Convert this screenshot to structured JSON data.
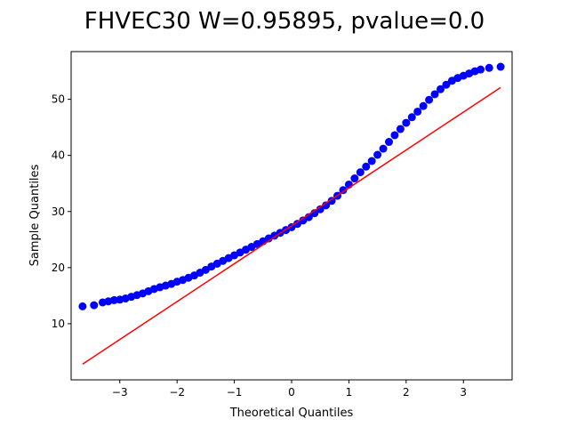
{
  "chart_data": {
    "type": "scatter",
    "title": "FHVEC30 W=0.95895, pvalue=0.0",
    "xlabel": "Theoretical Quantiles",
    "ylabel": "Sample Quantiles",
    "xlim": [
      -3.85,
      3.85
    ],
    "ylim": [
      0.0,
      58.5
    ],
    "xticks": [
      -3,
      -2,
      -1,
      0,
      1,
      2,
      3
    ],
    "xtick_labels": [
      "−3",
      "−2",
      "−1",
      "0",
      "1",
      "2",
      "3"
    ],
    "yticks": [
      10,
      20,
      30,
      40,
      50
    ],
    "ytick_labels": [
      "10",
      "20",
      "30",
      "40",
      "50"
    ],
    "grid": false,
    "series": [
      {
        "kind": "scatter",
        "color": "#0000ff",
        "x": [
          -3.65,
          -3.45,
          -3.3,
          -3.2,
          -3.1,
          -3.0,
          -2.9,
          -2.8,
          -2.7,
          -2.6,
          -2.5,
          -2.4,
          -2.3,
          -2.2,
          -2.1,
          -2.0,
          -1.9,
          -1.8,
          -1.7,
          -1.6,
          -1.5,
          -1.4,
          -1.3,
          -1.2,
          -1.1,
          -1.0,
          -0.9,
          -0.8,
          -0.7,
          -0.6,
          -0.5,
          -0.4,
          -0.3,
          -0.2,
          -0.1,
          0.0,
          0.1,
          0.2,
          0.3,
          0.4,
          0.5,
          0.6,
          0.7,
          0.8,
          0.9,
          1.0,
          1.1,
          1.2,
          1.3,
          1.4,
          1.5,
          1.6,
          1.7,
          1.8,
          1.9,
          2.0,
          2.1,
          2.2,
          2.3,
          2.4,
          2.5,
          2.6,
          2.7,
          2.8,
          2.9,
          3.0,
          3.1,
          3.2,
          3.3,
          3.45,
          3.65
        ],
        "y": [
          13.1,
          13.3,
          13.8,
          14.0,
          14.2,
          14.3,
          14.5,
          14.8,
          15.1,
          15.4,
          15.8,
          16.2,
          16.5,
          16.8,
          17.1,
          17.5,
          17.8,
          18.2,
          18.6,
          19.1,
          19.6,
          20.2,
          20.7,
          21.2,
          21.7,
          22.2,
          22.7,
          23.2,
          23.7,
          24.2,
          24.7,
          25.2,
          25.7,
          26.2,
          26.7,
          27.2,
          27.8,
          28.4,
          29.0,
          29.7,
          30.4,
          31.1,
          31.9,
          32.8,
          33.8,
          34.8,
          35.9,
          37.0,
          38.0,
          39.0,
          40.1,
          41.2,
          42.4,
          43.6,
          44.7,
          45.8,
          46.8,
          47.8,
          48.8,
          49.9,
          50.9,
          51.8,
          52.6,
          53.3,
          53.8,
          54.2,
          54.6,
          55.0,
          55.3,
          55.6,
          55.8
        ]
      },
      {
        "kind": "line",
        "color": "#ff0000",
        "x": [
          -3.65,
          3.65
        ],
        "y": [
          2.8,
          52.1
        ]
      }
    ]
  }
}
